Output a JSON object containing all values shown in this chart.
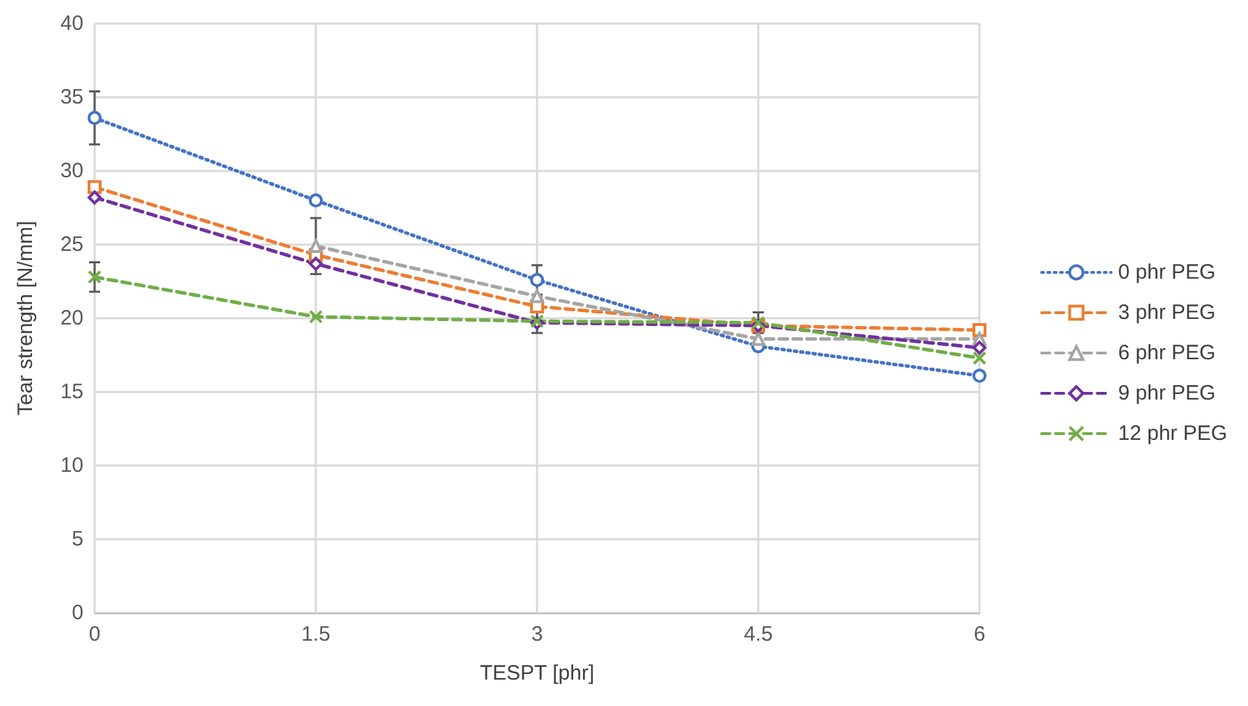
{
  "chart_data": {
    "type": "line",
    "xlabel": "TESPT [phr]",
    "ylabel": "Tear strength [N/mm]",
    "x": [
      0,
      1.5,
      3,
      4.5,
      6
    ],
    "xlim": [
      0,
      6
    ],
    "xticks": [
      0,
      1.5,
      3,
      4.5,
      6
    ],
    "ylim": [
      0,
      40
    ],
    "yticks": [
      0,
      5,
      10,
      15,
      20,
      25,
      30,
      35,
      40
    ],
    "grid": true,
    "legend": "right",
    "series": [
      {
        "name": "0 phr PEG",
        "color": "#4472c4",
        "marker": "circle",
        "line_style": "dotted",
        "values": [
          33.6,
          28.0,
          22.6,
          18.1,
          16.1
        ],
        "errors": [
          1.8,
          null,
          1.0,
          null,
          null
        ]
      },
      {
        "name": "3 phr PEG",
        "color": "#ed7d31",
        "marker": "square",
        "line_style": "dashed",
        "values": [
          28.9,
          24.3,
          20.8,
          19.5,
          19.2
        ],
        "errors": [
          null,
          null,
          null,
          null,
          null
        ]
      },
      {
        "name": "6 phr PEG",
        "color": "#a5a5a5",
        "marker": "triangle",
        "line_style": "dashed",
        "values": [
          null,
          24.9,
          21.5,
          18.6,
          18.6
        ],
        "errors": [
          null,
          1.9,
          null,
          null,
          0.5
        ]
      },
      {
        "name": "9 phr PEG",
        "color": "#7030a0",
        "marker": "diamond",
        "line_style": "dashed",
        "values": [
          28.2,
          23.7,
          19.7,
          19.5,
          18.0
        ],
        "errors": [
          null,
          null,
          null,
          null,
          null
        ]
      },
      {
        "name": "12 phr PEG",
        "color": "#70ad47",
        "marker": "cross",
        "line_style": "dashed",
        "values": [
          22.8,
          20.1,
          19.8,
          19.7,
          17.3
        ],
        "errors": [
          1.0,
          null,
          0.8,
          0.7,
          null
        ]
      }
    ]
  }
}
